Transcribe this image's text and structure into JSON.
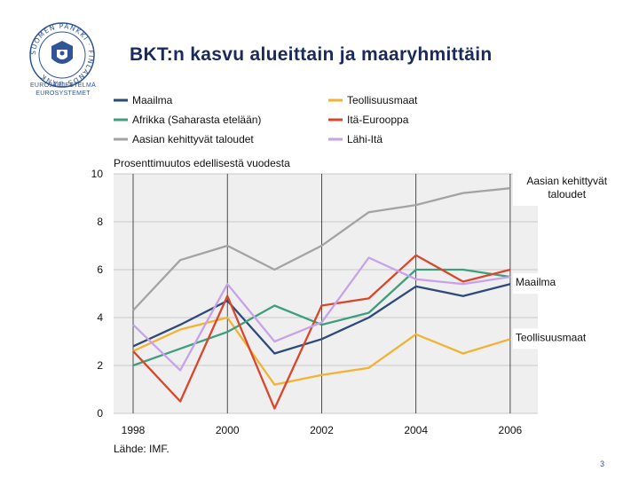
{
  "header": {
    "title": "BKT:n kasvu alueittain ja maaryhmittäin",
    "logo_text": "SUOMEN PANKKI · FINLANDS BANK",
    "logo_sub_1": "EUROJÄRJESTELMÄ",
    "logo_sub_2": "EUROSYSTEMET"
  },
  "page_number": "3",
  "chart_data": {
    "type": "line",
    "title": "BKT:n kasvu alueittain ja maaryhmittäin",
    "ylabel": "Prosenttimuutos edellisestä vuodesta",
    "xlabel": "",
    "source": "Lähde: IMF.",
    "x": [
      1998,
      1999,
      2000,
      2001,
      2002,
      2003,
      2004,
      2005,
      2006
    ],
    "x_ticks": [
      "1998",
      "2000",
      "2002",
      "2004",
      "2006"
    ],
    "y_ticks": [
      "0",
      "2",
      "4",
      "6",
      "8",
      "10"
    ],
    "xlim": [
      1998,
      2007
    ],
    "ylim": [
      0,
      10
    ],
    "legend": [
      "Maailma",
      "Teollisuusmaat",
      "Afrikka (Saharasta etelään)",
      "Itä-Eurooppa",
      "Aasian kehittyvät taloudet",
      "Lähi-Itä"
    ],
    "series": [
      {
        "name": "Maailma",
        "color": "#2e4a7a",
        "values": [
          2.8,
          3.7,
          4.7,
          2.5,
          3.1,
          4.0,
          5.3,
          4.9,
          5.4
        ]
      },
      {
        "name": "Teollisuusmaat",
        "color": "#f2b233",
        "values": [
          2.6,
          3.5,
          4.0,
          1.2,
          1.6,
          1.9,
          3.3,
          2.5,
          3.1
        ]
      },
      {
        "name": "Afrikka (Saharasta etelään)",
        "color": "#3f9e7c",
        "values": [
          2.0,
          2.7,
          3.4,
          4.5,
          3.7,
          4.2,
          6.0,
          6.0,
          5.7
        ]
      },
      {
        "name": "Itä-Eurooppa",
        "color": "#d9462c",
        "values": [
          2.6,
          0.5,
          4.9,
          0.2,
          4.5,
          4.8,
          6.6,
          5.5,
          6.0
        ]
      },
      {
        "name": "Aasian kehittyvät taloudet",
        "color": "#a3a3a3",
        "values": [
          4.3,
          6.4,
          7.0,
          6.0,
          7.0,
          8.4,
          8.7,
          9.2,
          9.4
        ]
      },
      {
        "name": "Lähi-Itä",
        "color": "#c7a2e8",
        "values": [
          3.7,
          1.8,
          5.4,
          3.0,
          3.8,
          6.5,
          5.6,
          5.4,
          5.7
        ]
      }
    ],
    "annotations": [
      {
        "series": "Aasian kehittyvät taloudet",
        "lines": [
          "Aasian kehittyvät",
          "taloudet"
        ]
      },
      {
        "series": "Maailma",
        "lines": [
          "Maailma"
        ]
      },
      {
        "series": "Teollisuusmaat",
        "lines": [
          "Teollisuusmaat"
        ]
      }
    ]
  }
}
